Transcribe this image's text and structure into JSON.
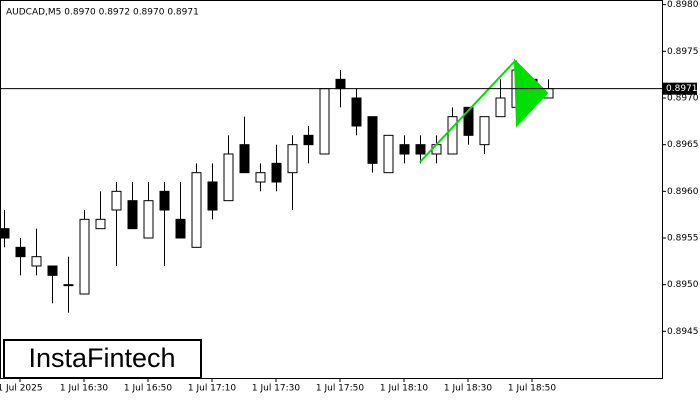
{
  "chart_data": {
    "type": "candlestick",
    "title": "AUDCAD,M5  0.8970 0.8972 0.8970 0.8971",
    "watermark": "InstaFintech",
    "categories": [
      null,
      "1 Jul 2025",
      null,
      null,
      null,
      "1 Jul 16:30",
      null,
      null,
      null,
      "1 Jul 16:50",
      null,
      null,
      null,
      "1 Jul 17:10",
      null,
      null,
      null,
      "1 Jul 17:30",
      null,
      null,
      null,
      "1 Jul 17:50",
      null,
      null,
      null,
      "1 Jul 18:10",
      null,
      null,
      null,
      "1 Jul 18:30",
      null,
      null,
      null,
      "1 Jul 18:50",
      null
    ],
    "open": [
      0.8956,
      0.8954,
      0.8952,
      0.8952,
      0.895,
      0.8949,
      0.8956,
      0.8958,
      0.8959,
      0.8955,
      0.896,
      0.8957,
      0.8954,
      0.8961,
      0.8959,
      0.8965,
      0.8961,
      0.8963,
      0.8962,
      0.8966,
      0.8964,
      0.8972,
      0.897,
      0.8968,
      0.8962,
      0.8965,
      0.8965,
      0.8964,
      0.8964,
      0.8969,
      0.8965,
      0.8968,
      0.8969,
      0.8972,
      0.897
    ],
    "high": [
      0.8958,
      0.8955,
      0.8956,
      0.8952,
      0.8953,
      0.8958,
      0.896,
      0.8961,
      0.8961,
      0.8961,
      0.8961,
      0.8961,
      0.8963,
      0.8963,
      0.8966,
      0.8968,
      0.8963,
      0.8965,
      0.8966,
      0.8967,
      0.8971,
      0.8973,
      0.8971,
      0.8968,
      0.8966,
      0.8966,
      0.8966,
      0.8966,
      0.8969,
      0.8969,
      0.8968,
      0.8972,
      0.8974,
      0.8972,
      0.8972
    ],
    "low": [
      0.8954,
      0.8951,
      0.8951,
      0.8948,
      0.8947,
      0.8949,
      0.8956,
      0.8952,
      0.8956,
      0.8955,
      0.8952,
      0.8955,
      0.8954,
      0.8957,
      0.8959,
      0.8962,
      0.896,
      0.896,
      0.8958,
      0.8963,
      0.8964,
      0.8969,
      0.8966,
      0.8962,
      0.8962,
      0.8963,
      0.8963,
      0.8963,
      0.8964,
      0.8965,
      0.8964,
      0.8968,
      0.8969,
      0.897,
      0.897
    ],
    "close": [
      0.8955,
      0.8953,
      0.8953,
      0.8951,
      0.895,
      0.8957,
      0.8957,
      0.896,
      0.8956,
      0.8959,
      0.8958,
      0.8955,
      0.8962,
      0.8958,
      0.8964,
      0.8962,
      0.8962,
      0.8961,
      0.8965,
      0.8965,
      0.8971,
      0.8971,
      0.8967,
      0.8963,
      0.8966,
      0.8964,
      0.8964,
      0.8965,
      0.8968,
      0.8966,
      0.8968,
      0.897,
      0.8973,
      0.8971,
      0.8971
    ],
    "last_price": 0.8971,
    "ylim": [
      0.894,
      0.89805
    ],
    "yticks": [
      0.8945,
      {
        "value": 0.895,
        "label": "0.8950"
      },
      0.8955,
      {
        "value": 0.896,
        "label": "0.8960"
      },
      0.8965,
      {
        "value": 0.897,
        "label": "0.8970"
      },
      0.8975,
      {
        "value": 0.898,
        "label": "0.8980"
      }
    ]
  }
}
